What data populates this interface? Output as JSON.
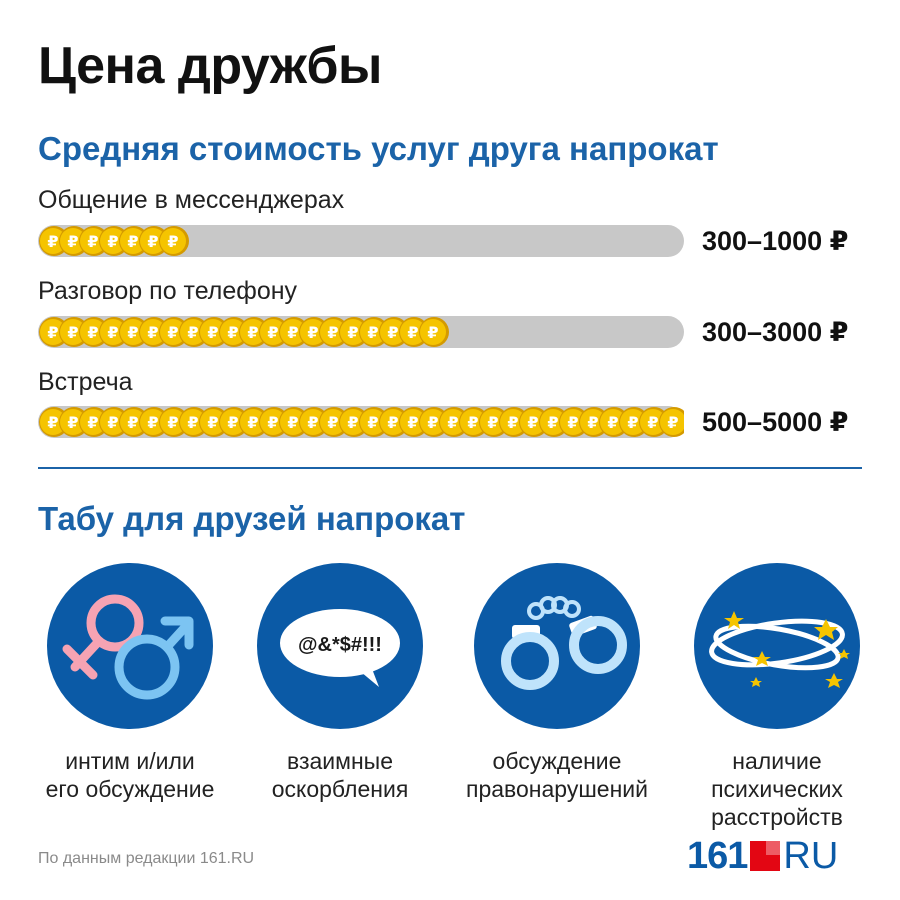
{
  "title": "Цена дружбы",
  "subtitle": "Средняя стоимость услуг друга напрокат",
  "chart_data": {
    "type": "bar",
    "categories": [
      "Общение в мессенджерах",
      "Разговор по телефону",
      "Встреча"
    ],
    "value_labels": [
      "300–1000 ₽",
      "300–3000 ₽",
      "500–5000 ₽"
    ],
    "coins": [
      7,
      20,
      32
    ],
    "coins_max": 32,
    "coin_symbol": "₽",
    "colors": {
      "coin": "#f5c400",
      "coin_edge": "#d49a00",
      "track": "#c8c8c8"
    }
  },
  "taboo_title": "Табу для друзей напрокат",
  "taboo": [
    {
      "icon": "gender-symbols-icon",
      "caption": "интим и/или\nего обсуждение"
    },
    {
      "icon": "speech-bubble-icon",
      "caption": "взаимные\nоскорбления",
      "bubble_text": "@&*$#!!!"
    },
    {
      "icon": "handcuffs-icon",
      "caption": "обсуждение\nправонарушений"
    },
    {
      "icon": "dizzy-stars-icon",
      "caption": "наличие\nпсихических\nрасстройств"
    }
  ],
  "source": "По данным редакции 161.RU",
  "logo": {
    "number": "161",
    "suffix": "RU"
  }
}
